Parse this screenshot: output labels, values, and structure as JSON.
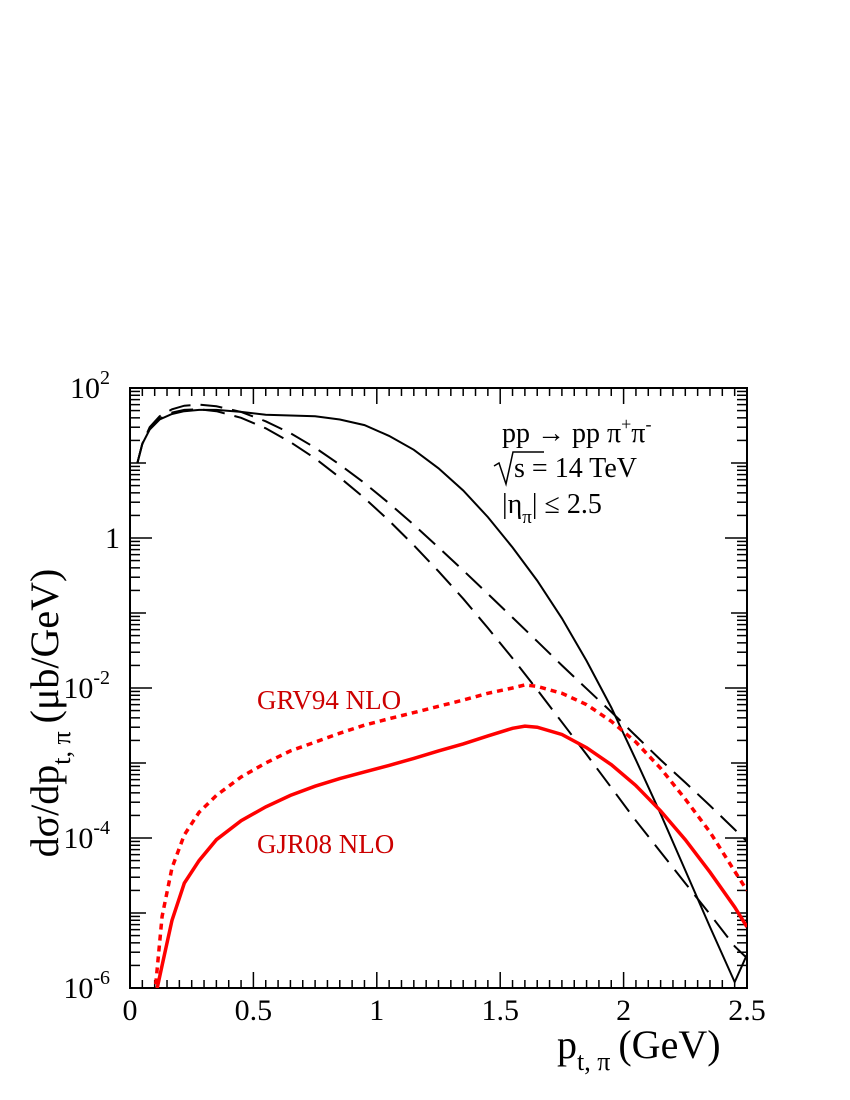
{
  "chart_data": {
    "type": "line",
    "xlabel": "p",
    "xlabel_sub": "t, π",
    "xlabel_unit": "(GeV)",
    "ylabel": "dσ/dp",
    "ylabel_sub": "t, π",
    "ylabel_unit": "(μb/GeV)",
    "xlim": [
      0,
      2.5
    ],
    "ylim": [
      1e-06,
      100
    ],
    "y_scale": "log",
    "grid": false,
    "x_ticks": [
      {
        "value": 0,
        "label": "0"
      },
      {
        "value": 0.5,
        "label": "0.5"
      },
      {
        "value": 1,
        "label": "1"
      },
      {
        "value": 1.5,
        "label": "1.5"
      },
      {
        "value": 2,
        "label": "2"
      },
      {
        "value": 2.5,
        "label": "2.5"
      }
    ],
    "y_ticks": [
      {
        "value": 1e-06,
        "base": "10",
        "exp": "-6"
      },
      {
        "value": 0.0001,
        "base": "10",
        "exp": "-4"
      },
      {
        "value": 0.01,
        "base": "10",
        "exp": "-2"
      },
      {
        "value": 1,
        "base": "1",
        "exp": ""
      },
      {
        "value": 100,
        "base": "10",
        "exp": "2"
      }
    ],
    "annotations": {
      "process": "pp → pp π",
      "process_sup": "+",
      "process_sup2": "π",
      "process_sup3": "-",
      "energy": "s = 14 TeV",
      "eta_left": "|η",
      "eta_sub": "π",
      "eta_right": "| ≤ 2.5"
    },
    "series": [
      {
        "name": "",
        "color": "#000000",
        "style": "solid",
        "x": [
          0.03,
          0.05,
          0.08,
          0.12,
          0.17,
          0.22,
          0.28,
          0.35,
          0.45,
          0.55,
          0.65,
          0.75,
          0.85,
          0.95,
          1.05,
          1.15,
          1.25,
          1.35,
          1.45,
          1.55,
          1.65,
          1.75,
          1.85,
          1.95,
          2.05,
          2.15,
          2.25,
          2.35,
          2.45,
          2.5
        ],
        "y": [
          10,
          18,
          28,
          38,
          45,
          49,
          51,
          51,
          48,
          44,
          43,
          42,
          38,
          32,
          23,
          15,
          8.5,
          4.3,
          1.9,
          0.75,
          0.27,
          0.085,
          0.023,
          0.0055,
          0.0011,
          0.00021,
          3.7e-05,
          6.5e-06,
          1.2e-06,
          2.8e-06
        ]
      },
      {
        "name": "",
        "color": "#000000",
        "style": "long-dash",
        "x": [
          0.03,
          0.05,
          0.08,
          0.12,
          0.17,
          0.22,
          0.28,
          0.35,
          0.45,
          0.55,
          0.65,
          0.75,
          0.85,
          0.95,
          1.05,
          1.15,
          1.25,
          1.35,
          1.45,
          1.55,
          1.65,
          1.75,
          1.85,
          1.95,
          2.05,
          2.15,
          2.25,
          2.35,
          2.45,
          2.5
        ],
        "y": [
          10,
          18,
          30,
          42,
          52,
          58,
          60,
          57,
          48,
          36,
          25,
          16,
          9.5,
          5.4,
          2.9,
          1.5,
          0.75,
          0.37,
          0.18,
          0.087,
          0.042,
          0.02,
          0.0098,
          0.0048,
          0.0023,
          0.0011,
          0.00055,
          0.00027,
          0.00013,
          9e-05
        ]
      },
      {
        "name": "",
        "color": "#000000",
        "style": "long-dash",
        "x": [
          0.03,
          0.05,
          0.08,
          0.12,
          0.17,
          0.22,
          0.28,
          0.35,
          0.45,
          0.55,
          0.65,
          0.75,
          0.85,
          0.95,
          1.05,
          1.15,
          1.25,
          1.35,
          1.45,
          1.55,
          1.65,
          1.75,
          1.85,
          1.95,
          2.05,
          2.15,
          2.25,
          2.35,
          2.45,
          2.5
        ],
        "y": [
          10,
          18,
          29,
          39,
          47,
          51,
          52,
          49,
          40,
          29,
          19,
          11.5,
          6.4,
          3.4,
          1.7,
          0.8,
          0.36,
          0.155,
          0.063,
          0.025,
          0.0095,
          0.0035,
          0.0013,
          0.00047,
          0.00017,
          6.5e-05,
          2.5e-05,
          9.6e-06,
          3.6e-06,
          2.5e-06
        ]
      },
      {
        "name": "GRV94 NLO",
        "color": "#ff0000",
        "style": "dotted",
        "x": [
          0.1,
          0.13,
          0.17,
          0.22,
          0.28,
          0.35,
          0.45,
          0.55,
          0.65,
          0.75,
          0.85,
          0.95,
          1.05,
          1.15,
          1.25,
          1.35,
          1.45,
          1.55,
          1.6,
          1.65,
          1.75,
          1.85,
          1.95,
          2.05,
          2.15,
          2.25,
          2.35,
          2.45,
          2.5
        ],
        "y": [
          8e-07,
          9e-06,
          4e-05,
          0.00011,
          0.00022,
          0.00037,
          0.00065,
          0.001,
          0.00145,
          0.0019,
          0.0025,
          0.0032,
          0.0039,
          0.0047,
          0.0057,
          0.0069,
          0.0085,
          0.01,
          0.011,
          0.0105,
          0.0085,
          0.006,
          0.0036,
          0.0019,
          0.00085,
          0.00033,
          0.00012,
          3.6e-05,
          2e-05
        ]
      },
      {
        "name": "GJR08 NLO",
        "color": "#ff0000",
        "style": "solid",
        "x": [
          0.1,
          0.13,
          0.17,
          0.22,
          0.28,
          0.35,
          0.45,
          0.55,
          0.65,
          0.75,
          0.85,
          0.95,
          1.05,
          1.15,
          1.25,
          1.35,
          1.45,
          1.55,
          1.6,
          1.65,
          1.75,
          1.85,
          1.95,
          2.05,
          2.15,
          2.25,
          2.35,
          2.45,
          2.5
        ],
        "y": [
          7e-07,
          2e-06,
          8e-06,
          2.5e-05,
          5e-05,
          9.5e-05,
          0.00017,
          0.00026,
          0.00037,
          0.00049,
          0.00062,
          0.00076,
          0.00093,
          0.00115,
          0.00145,
          0.0018,
          0.0023,
          0.0029,
          0.0031,
          0.003,
          0.0024,
          0.0016,
          0.00095,
          0.0005,
          0.00023,
          9.5e-05,
          3.5e-05,
          1.2e-05,
          6.5e-06
        ]
      }
    ]
  }
}
